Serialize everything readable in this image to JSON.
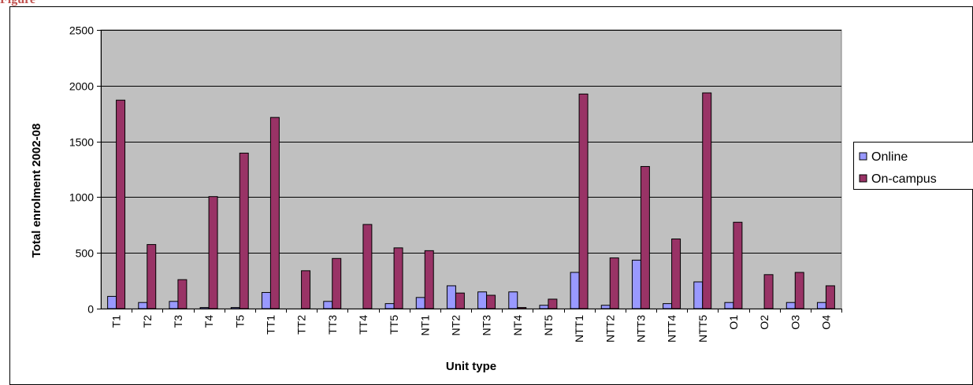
{
  "caption": "Figure",
  "chart_data": {
    "type": "bar",
    "title": "",
    "xlabel": "Unit type",
    "ylabel": "Total enrolment 2002-08",
    "ylim": [
      0,
      2500
    ],
    "yticks": [
      0,
      500,
      1000,
      1500,
      2000,
      2500
    ],
    "grid": true,
    "legend_position": "right",
    "categories": [
      "T1",
      "T2",
      "T3",
      "T4",
      "T5",
      "TT1",
      "TT2",
      "TT3",
      "TT4",
      "TT5",
      "NT1",
      "NT2",
      "NT3",
      "NT4",
      "NT5",
      "NTT1",
      "NTT2",
      "NTT3",
      "NTT4",
      "NTT5",
      "O1",
      "O2",
      "O3",
      "O4"
    ],
    "series": [
      {
        "name": "Online",
        "color": "#9999ff",
        "values": [
          110,
          55,
          65,
          10,
          10,
          145,
          0,
          65,
          0,
          45,
          100,
          205,
          150,
          150,
          30,
          325,
          30,
          435,
          45,
          240,
          55,
          0,
          55,
          55
        ]
      },
      {
        "name": "On-campus",
        "color": "#993366",
        "values": [
          1870,
          575,
          260,
          1005,
          1395,
          1715,
          340,
          450,
          755,
          545,
          520,
          140,
          120,
          10,
          85,
          1925,
          455,
          1275,
          625,
          1935,
          775,
          305,
          325,
          205
        ]
      }
    ],
    "plot_background": "#c0c0c0"
  }
}
